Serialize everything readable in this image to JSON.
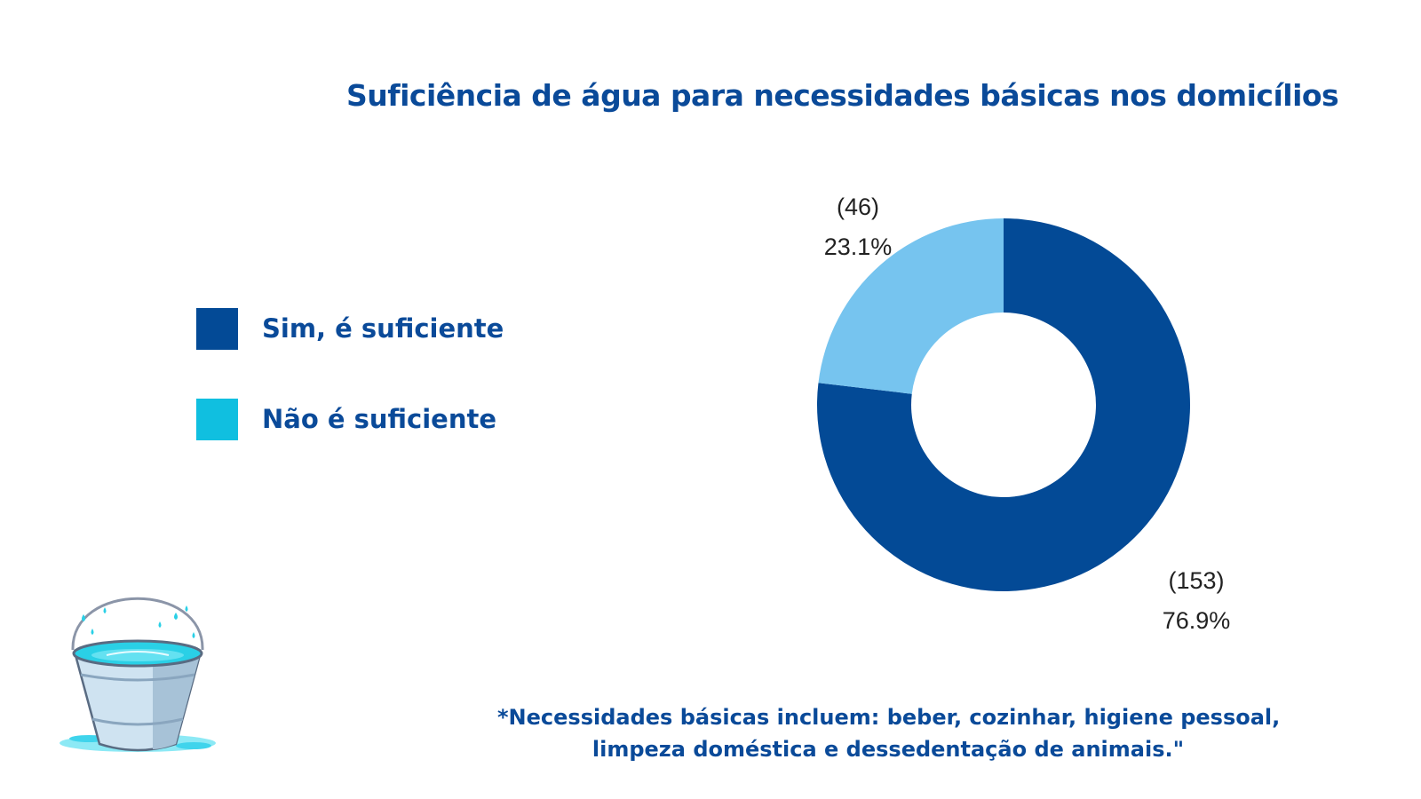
{
  "chart_data": {
    "type": "pie",
    "title": "Suficiência de água para necessidades básicas nos domicílios",
    "categories": [
      "Sim, é suficiente",
      "Não é suficiente"
    ],
    "values": [
      153,
      46
    ],
    "percent_labels": [
      "76.9%",
      "23.1%"
    ],
    "count_labels": [
      "(153)",
      "(46)"
    ],
    "slice_colors": [
      "#034a96",
      "#76c4ef"
    ],
    "legend_colors": [
      "#034a96",
      "#10bfe0"
    ],
    "donut": true,
    "legend_placement": "left"
  },
  "footnote": {
    "line1": "*Necessidades básicas incluem: beber, cozinhar, higiene pessoal,",
    "line2": "limpeza doméstica e dessedentação de animais.\""
  }
}
